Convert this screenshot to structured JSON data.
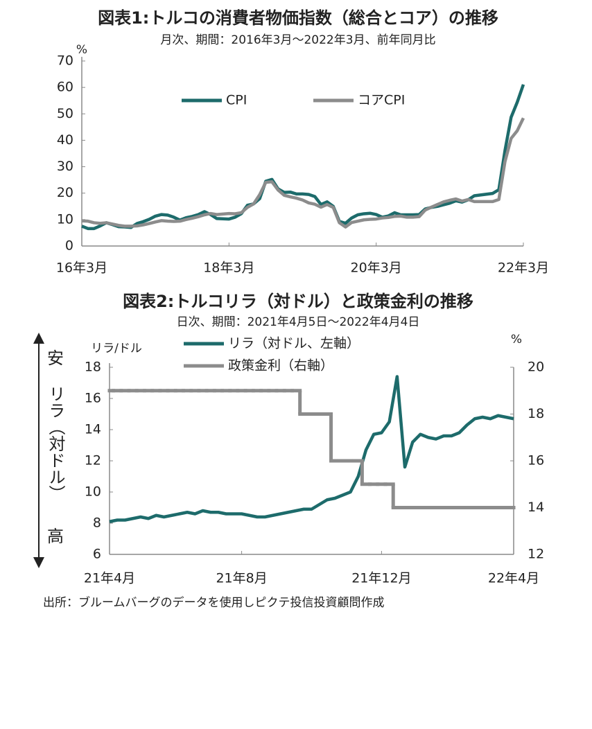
{
  "chart_data": [
    {
      "type": "line",
      "title": "図表1:トルコの消費者物価指数（総合とコア）の推移",
      "subtitle": "月次、期間：2016年3月～2022年3月、前年同月比",
      "y_unit": "%",
      "categories": [
        "16年3月",
        null,
        null,
        null,
        null,
        null,
        null,
        null,
        null,
        null,
        null,
        null,
        null,
        null,
        null,
        null,
        null,
        null,
        null,
        null,
        null,
        null,
        null,
        null,
        "18年3月",
        null,
        null,
        null,
        null,
        null,
        null,
        null,
        null,
        null,
        null,
        null,
        null,
        null,
        null,
        null,
        null,
        null,
        null,
        null,
        null,
        null,
        null,
        null,
        "20年3月",
        null,
        null,
        null,
        null,
        null,
        null,
        null,
        null,
        null,
        null,
        null,
        null,
        null,
        null,
        null,
        null,
        null,
        null,
        null,
        null,
        null,
        null,
        null,
        "22年3月"
      ],
      "series": [
        {
          "name": "CPI",
          "color": "#1d6b6b",
          "values": [
            7.5,
            6.6,
            6.6,
            7.6,
            8.8,
            8.1,
            7.3,
            7.2,
            7.0,
            8.5,
            9.2,
            10.1,
            11.3,
            11.9,
            11.7,
            10.9,
            9.8,
            10.7,
            11.2,
            11.9,
            13.0,
            11.9,
            10.4,
            10.3,
            10.2,
            10.9,
            12.2,
            15.4,
            15.9,
            17.9,
            24.5,
            25.2,
            21.6,
            20.3,
            20.4,
            19.7,
            19.7,
            19.5,
            18.7,
            15.7,
            16.7,
            15.0,
            9.3,
            8.6,
            10.6,
            11.8,
            12.2,
            12.4,
            11.9,
            10.9,
            11.4,
            12.6,
            11.8,
            11.8,
            11.8,
            11.9,
            14.0,
            14.6,
            15.0,
            15.6,
            16.2,
            17.1,
            16.6,
            17.5,
            19.0,
            19.3,
            19.6,
            19.9,
            21.3,
            36.1,
            48.7,
            54.4,
            61.1
          ]
        },
        {
          "name": "コアCPI",
          "color": "#8c8c8c",
          "values": [
            9.5,
            9.4,
            8.8,
            8.6,
            8.8,
            8.3,
            7.8,
            7.5,
            7.5,
            7.6,
            8.0,
            8.5,
            9.1,
            9.6,
            9.4,
            9.3,
            9.4,
            10.0,
            10.5,
            11.1,
            11.8,
            12.3,
            11.9,
            12.1,
            12.3,
            12.2,
            12.6,
            14.6,
            15.9,
            19.4,
            24.1,
            24.3,
            21.2,
            19.2,
            18.6,
            18.1,
            17.4,
            16.3,
            15.8,
            14.7,
            15.7,
            14.6,
            8.8,
            7.2,
            8.9,
            9.4,
            9.9,
            10.1,
            10.2,
            10.6,
            10.8,
            11.2,
            11.3,
            10.9,
            10.9,
            11.1,
            13.6,
            14.7,
            15.7,
            16.7,
            17.3,
            17.8,
            17.0,
            17.6,
            16.8,
            16.8,
            16.8,
            16.8,
            17.6,
            31.9,
            40.7,
            43.6,
            48.4
          ]
        }
      ],
      "ylim": [
        0,
        70
      ],
      "yticks": [
        0,
        10,
        20,
        30,
        40,
        50,
        60,
        70
      ],
      "grid": false,
      "legend": "upper center"
    },
    {
      "type": "line",
      "title": "図表2:トルコリラ（対ドル）と政策金利の推移",
      "subtitle": "日次、期間：2021年4月5日～2022年4月4日",
      "y_unit": "リラ/ドル",
      "y2_unit": "%",
      "annotations": [
        "安",
        "リラ（対ドル）",
        "高"
      ],
      "categories": [
        "21年4月",
        null,
        null,
        null,
        null,
        null,
        null,
        null,
        null,
        null,
        null,
        null,
        null,
        null,
        null,
        null,
        null,
        "21年8月",
        null,
        null,
        null,
        null,
        null,
        null,
        null,
        null,
        null,
        null,
        null,
        null,
        null,
        null,
        null,
        null,
        null,
        "21年12月",
        null,
        null,
        null,
        null,
        null,
        null,
        null,
        null,
        null,
        null,
        null,
        null,
        null,
        null,
        null,
        null,
        "22年4月"
      ],
      "series": [
        {
          "name": "リラ（対ドル、左軸）",
          "color": "#1d6b6b",
          "values": [
            8.1,
            8.2,
            8.2,
            8.3,
            8.4,
            8.3,
            8.5,
            8.4,
            8.5,
            8.6,
            8.7,
            8.6,
            8.8,
            8.7,
            8.7,
            8.6,
            8.6,
            8.6,
            8.5,
            8.4,
            8.4,
            8.5,
            8.6,
            8.7,
            8.8,
            8.9,
            8.9,
            9.2,
            9.5,
            9.6,
            9.8,
            10.0,
            11.0,
            12.7,
            13.7,
            13.8,
            14.5,
            17.4,
            11.6,
            13.2,
            13.7,
            13.5,
            13.4,
            13.6,
            13.6,
            13.8,
            14.3,
            14.7,
            14.8,
            14.7,
            14.9,
            14.8,
            14.7
          ]
        },
        {
          "name": "政策金利（右軸）",
          "color": "#8c8c8c",
          "axis": "y2",
          "step": true,
          "values": [
            19,
            19,
            19,
            19,
            19,
            19,
            19,
            19,
            19,
            19,
            19,
            19,
            19,
            19,
            19,
            19,
            19,
            19,
            19,
            19,
            19,
            19,
            19,
            19,
            19,
            18,
            18,
            18,
            18,
            16,
            16,
            16,
            16,
            15,
            15,
            15,
            15,
            14,
            14,
            14,
            14,
            14,
            14,
            14,
            14,
            14,
            14,
            14,
            14,
            14,
            14,
            14,
            14
          ]
        }
      ],
      "ylim": [
        6,
        18
      ],
      "yticks": [
        6,
        8,
        10,
        12,
        14,
        16,
        18
      ],
      "y2lim": [
        12,
        20
      ],
      "y2ticks": [
        12,
        14,
        16,
        18,
        20
      ],
      "grid": false,
      "legend": "upper center"
    }
  ],
  "source": "出所：ブルームバーグのデータを使用しピクテ投信投資顧問作成"
}
